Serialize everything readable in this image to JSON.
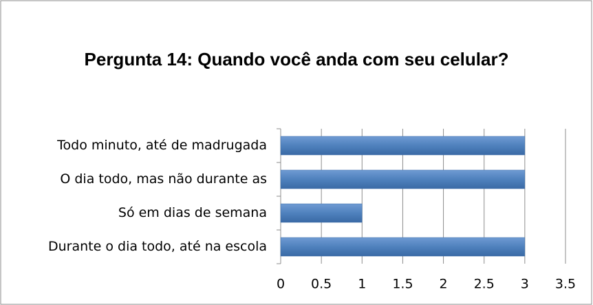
{
  "chart_data": {
    "type": "bar",
    "orientation": "horizontal",
    "title": "Pergunta  14: Quando você anda com seu celular?",
    "categories": [
      "Todo minuto, até de madrugada",
      "O dia todo, mas não durante as",
      "Só em dias de semana",
      "Durante o dia todo, até na escola"
    ],
    "values": [
      3,
      3,
      1,
      3
    ],
    "color": "#4f81bd",
    "xlim": [
      0,
      3.5
    ],
    "xticks": [
      0,
      0.5,
      1,
      1.5,
      2,
      2.5,
      3,
      3.5
    ],
    "grid": true
  }
}
